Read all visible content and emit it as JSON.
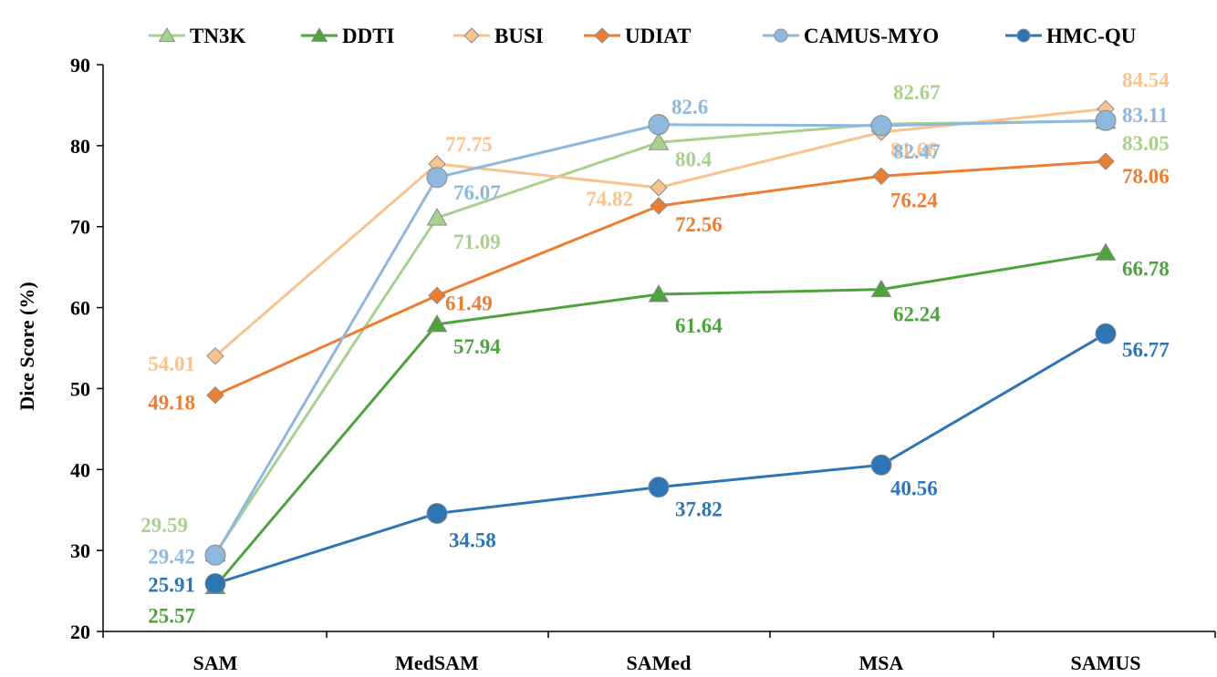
{
  "chart_data": {
    "type": "line",
    "title": "",
    "xlabel": "",
    "ylabel": "Dice Score (%)",
    "ylim": [
      20,
      90
    ],
    "yticks": [
      20,
      30,
      40,
      50,
      60,
      70,
      80,
      90
    ],
    "categories": [
      "SAM",
      "MedSAM",
      "SAMed",
      "MSA",
      "SAMUS"
    ],
    "legend_position": "top",
    "grid": false,
    "series": [
      {
        "name": "TN3K",
        "marker": "triangle",
        "color": "#a9d18e",
        "values": [
          29.59,
          71.09,
          80.4,
          82.67,
          83.05
        ],
        "labels": [
          "29.59",
          "71.09",
          "80.4",
          "82.67",
          "83.05"
        ]
      },
      {
        "name": "DDTI",
        "marker": "triangle",
        "color": "#4ea33e",
        "values": [
          25.57,
          57.94,
          61.64,
          62.24,
          66.78
        ],
        "labels": [
          "25.57",
          "57.94",
          "61.64",
          "62.24",
          "66.78"
        ]
      },
      {
        "name": "BUSI",
        "marker": "diamond",
        "color": "#f8c38e",
        "values": [
          54.01,
          77.75,
          74.82,
          81.66,
          84.54
        ],
        "labels": [
          "54.01",
          "77.75",
          "74.82",
          "81.66",
          "84.54"
        ]
      },
      {
        "name": "UDIAT",
        "marker": "diamond",
        "color": "#ed7d31",
        "values": [
          49.18,
          61.49,
          72.56,
          76.24,
          78.06
        ],
        "labels": [
          "49.18",
          "61.49",
          "72.56",
          "76.24",
          "78.06"
        ]
      },
      {
        "name": "CAMUS-MYO",
        "marker": "circle",
        "color": "#8fb8de",
        "values": [
          29.42,
          76.07,
          82.6,
          82.47,
          83.11
        ],
        "labels": [
          "29.42",
          "76.07",
          "82.6",
          "82.47",
          "83.11"
        ]
      },
      {
        "name": "HMC-QU",
        "marker": "circle",
        "color": "#2e75b6",
        "values": [
          25.91,
          34.58,
          37.82,
          40.56,
          56.77
        ],
        "labels": [
          "25.91",
          "34.58",
          "37.82",
          "40.56",
          "56.77"
        ]
      }
    ]
  }
}
